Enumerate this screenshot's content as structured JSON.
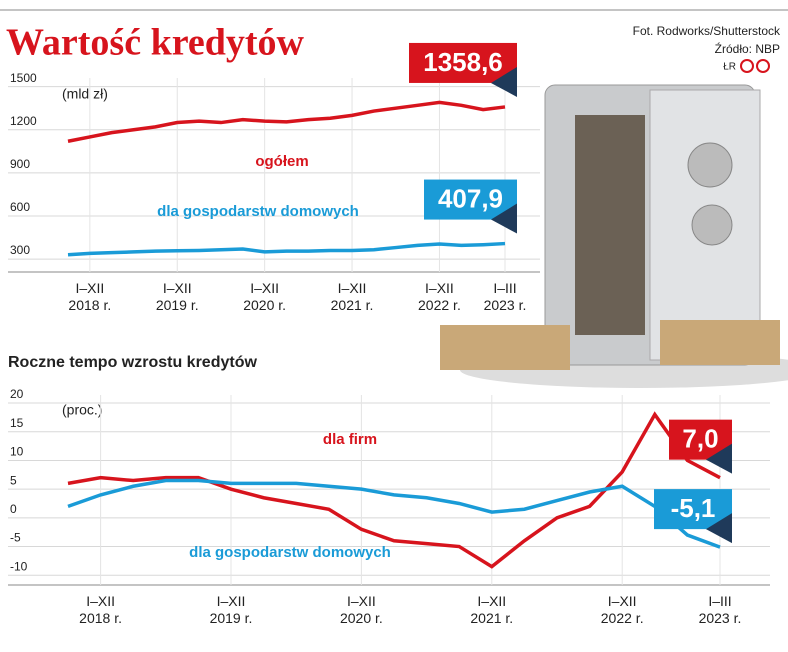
{
  "header": {
    "title": "Wartość kredytów",
    "photo_credit": "Fot. Rodworks/Shutterstock",
    "source": "Źródło: NBP",
    "author": "ŁR"
  },
  "chart_data": [
    {
      "type": "line",
      "unit": "(mld zł)",
      "categories": [
        null,
        "I–XII\n2018 r.",
        null,
        null,
        null,
        "I–XII\n2019 r.",
        null,
        null,
        null,
        "I–XII\n2020 r.",
        null,
        null,
        null,
        "I–XII\n2021 r.",
        null,
        null,
        null,
        "I–XII\n2022 r.",
        null,
        null,
        "I–III\n2023 r."
      ],
      "series": [
        {
          "name": "ogółem",
          "color": "#d7141d",
          "values": [
            1120,
            1150,
            1180,
            1200,
            1220,
            1250,
            1260,
            1250,
            1270,
            1260,
            1255,
            1270,
            1280,
            1300,
            1330,
            1350,
            1370,
            1390,
            1370,
            1340,
            1358.6
          ],
          "value_labels": {
            "20": "1358,6"
          }
        },
        {
          "name": "dla gospodarstw domowych",
          "color": "#1a9bd7",
          "values": [
            330,
            340,
            345,
            350,
            355,
            358,
            360,
            365,
            370,
            350,
            355,
            355,
            360,
            360,
            365,
            380,
            395,
            405,
            395,
            400,
            407.9
          ],
          "value_labels": {
            "20": "407,9"
          }
        }
      ],
      "ylim": [
        210,
        1560
      ],
      "yticks": [
        300,
        600,
        900,
        1200,
        1500
      ],
      "grid": true
    },
    {
      "type": "line",
      "title": "Roczne tempo wzrostu kredytów",
      "unit": "(proc.)",
      "categories": [
        null,
        "I–XII\n2018 r.",
        null,
        null,
        null,
        "I–XII\n2019 r.",
        null,
        null,
        null,
        "I–XII\n2020 r.",
        null,
        null,
        null,
        "I–XII\n2021 r.",
        null,
        null,
        null,
        "I–XII\n2022 r.",
        null,
        null,
        "I–III\n2023 r."
      ],
      "series": [
        {
          "name": "dla firm",
          "color": "#d7141d",
          "values": [
            6,
            7,
            6.5,
            7,
            7,
            5,
            3.5,
            2.5,
            1.5,
            -2,
            -4,
            -4.5,
            -5,
            -8.5,
            -4,
            0,
            2,
            8,
            18,
            10,
            7.0
          ],
          "value_labels": {
            "20": "7,0"
          }
        },
        {
          "name": "dla gospodarstw domowych",
          "color": "#1a9bd7",
          "values": [
            2,
            4,
            5.5,
            6.5,
            6.5,
            6,
            6,
            6,
            5.5,
            5,
            4,
            3.5,
            2.5,
            1,
            1.5,
            3,
            4.5,
            5.5,
            2,
            -3,
            -5.1
          ],
          "value_labels": {
            "20": "-5,1"
          }
        }
      ],
      "ylim": [
        -11.7,
        21.4
      ],
      "yticks": [
        -10,
        -5,
        0,
        5,
        10,
        15,
        20
      ],
      "grid": true
    }
  ]
}
